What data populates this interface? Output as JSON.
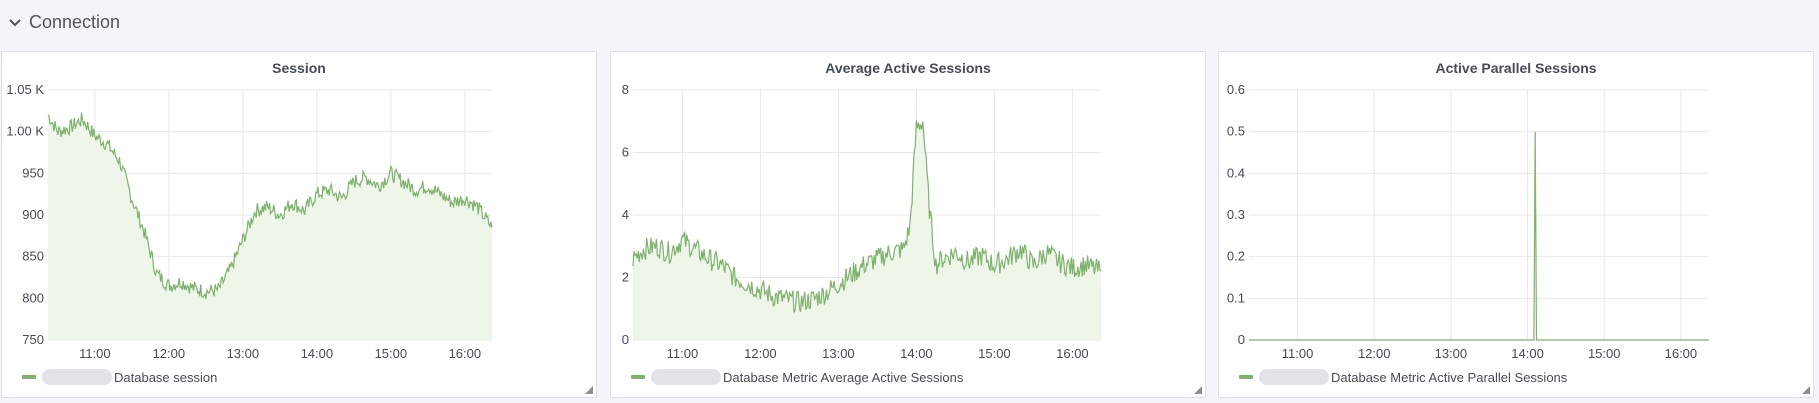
{
  "row": {
    "title": "Connection"
  },
  "colors": {
    "series": "#7eb26d",
    "fill": "#eef6ea",
    "grid": "#e6e8ec"
  },
  "chart_data": [
    {
      "type": "area",
      "title": "Session",
      "legend": "Database session",
      "xticks": [
        "11:00",
        "12:00",
        "13:00",
        "14:00",
        "15:00",
        "16:00"
      ],
      "yticks": [
        "750",
        "800",
        "850",
        "900",
        "950",
        "1.00 K",
        "1.05 K"
      ],
      "ylim": [
        750,
        1050
      ],
      "xlim": [
        "10:22",
        "16:22"
      ],
      "series": [
        {
          "x": [
            "10:22",
            "10:30",
            "10:40",
            "10:50",
            "11:00",
            "11:10",
            "11:20",
            "11:30",
            "11:40",
            "11:50",
            "12:00",
            "12:10",
            "12:20",
            "12:30",
            "12:40",
            "12:50",
            "13:00",
            "13:10",
            "13:20",
            "13:30",
            "13:40",
            "13:50",
            "14:00",
            "14:10",
            "14:20",
            "14:30",
            "14:40",
            "14:50",
            "15:00",
            "15:10",
            "15:20",
            "15:30",
            "15:40",
            "15:50",
            "16:00",
            "16:10",
            "16:22"
          ],
          "values": [
            1020,
            1000,
            1005,
            1015,
            995,
            985,
            965,
            920,
            880,
            830,
            815,
            820,
            812,
            808,
            810,
            835,
            870,
            905,
            910,
            900,
            915,
            905,
            925,
            930,
            920,
            940,
            945,
            935,
            950,
            940,
            930,
            935,
            925,
            915,
            920,
            910,
            885
          ]
        }
      ]
    },
    {
      "type": "area",
      "title": "Average Active Sessions",
      "legend": "Database Metric Average Active Sessions",
      "xticks": [
        "11:00",
        "12:00",
        "13:00",
        "14:00",
        "15:00",
        "16:00"
      ],
      "yticks": [
        "0",
        "2",
        "4",
        "6",
        "8"
      ],
      "ylim": [
        0,
        8
      ],
      "xlim": [
        "10:22",
        "16:22"
      ],
      "series": [
        {
          "x": [
            "10:22",
            "10:30",
            "10:40",
            "10:50",
            "11:00",
            "11:10",
            "11:20",
            "11:30",
            "11:40",
            "11:50",
            "12:00",
            "12:10",
            "12:20",
            "12:30",
            "12:40",
            "12:50",
            "13:00",
            "13:10",
            "13:20",
            "13:30",
            "13:40",
            "13:50",
            "13:55",
            "14:00",
            "14:05",
            "14:10",
            "14:15",
            "14:20",
            "14:30",
            "14:40",
            "14:50",
            "15:00",
            "15:10",
            "15:20",
            "15:30",
            "15:40",
            "15:50",
            "16:00",
            "16:10",
            "16:22"
          ],
          "values": [
            2.6,
            2.9,
            3.0,
            2.8,
            3.2,
            2.9,
            2.6,
            2.4,
            2.0,
            1.8,
            1.6,
            1.4,
            1.3,
            1.2,
            1.3,
            1.5,
            1.8,
            2.1,
            2.4,
            2.6,
            2.8,
            2.9,
            3.6,
            6.8,
            7.0,
            4.2,
            2.4,
            2.6,
            2.8,
            2.5,
            2.7,
            2.4,
            2.6,
            2.9,
            2.4,
            2.8,
            2.5,
            2.3,
            2.4,
            2.2
          ]
        }
      ]
    },
    {
      "type": "line",
      "title": "Active Parallel Sessions",
      "legend": "Database Metric Active Parallel Sessions",
      "xticks": [
        "11:00",
        "12:00",
        "13:00",
        "14:00",
        "15:00",
        "16:00"
      ],
      "yticks": [
        "0",
        "0.1",
        "0.2",
        "0.3",
        "0.4",
        "0.5",
        "0.6"
      ],
      "ylim": [
        0,
        0.6
      ],
      "xlim": [
        "10:22",
        "16:22"
      ],
      "series": [
        {
          "x": [
            "10:22",
            "14:05",
            "14:06",
            "14:07",
            "16:22"
          ],
          "values": [
            0,
            0,
            0.5,
            0,
            0
          ]
        }
      ]
    }
  ]
}
